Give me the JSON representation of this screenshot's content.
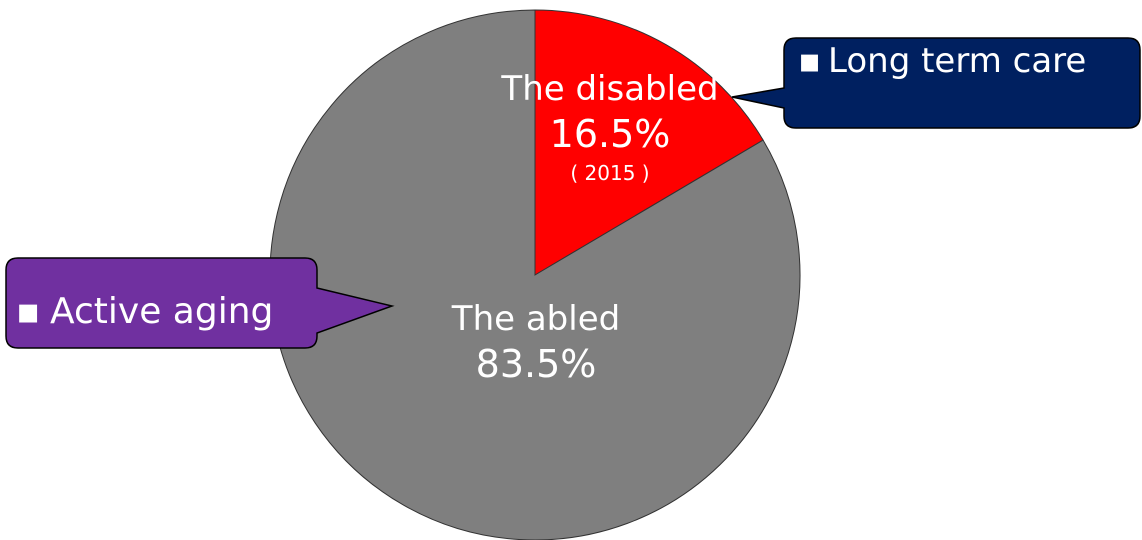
{
  "chart_data": {
    "type": "pie",
    "slices": [
      {
        "name": "The disabled",
        "value": 16.5,
        "value_label": "16.5%",
        "note": "( 2015 )",
        "color": "#ff0000"
      },
      {
        "name": "The abled",
        "value": 83.5,
        "value_label": "83.5%",
        "color": "#7f7f7f"
      }
    ]
  },
  "callouts": {
    "long_term_care": {
      "bullet": "▪",
      "text": "Long term care",
      "color": "#002060"
    },
    "active_aging": {
      "bullet": "▪",
      "text": "Active aging",
      "color": "#7030a0"
    }
  }
}
